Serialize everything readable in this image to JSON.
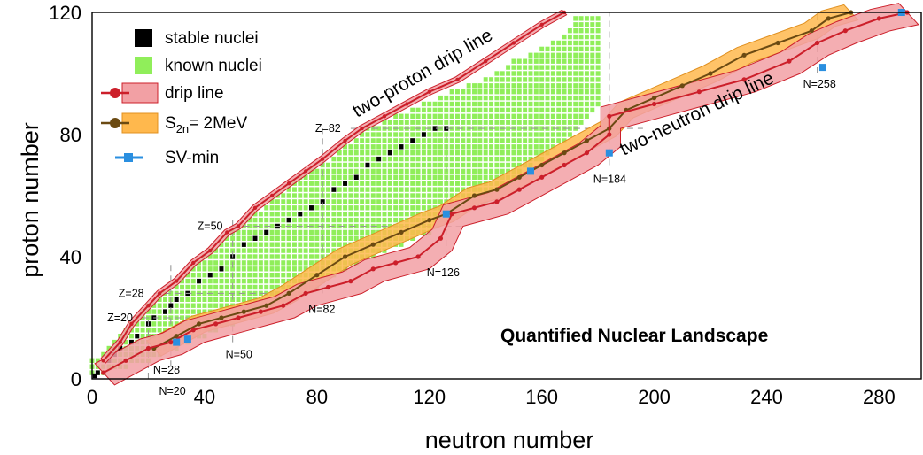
{
  "chart_data": {
    "type": "scatter",
    "title": "Quantified Nuclear Landscape",
    "xlabel": "neutron number",
    "ylabel": "proton number",
    "xlim": [
      0,
      295
    ],
    "ylim": [
      0,
      120
    ],
    "xticks": [
      "0",
      "40",
      "80",
      "120",
      "160",
      "200",
      "240",
      "280"
    ],
    "yticks": [
      "0",
      "40",
      "80",
      "120"
    ],
    "legend": {
      "placement": "top-left",
      "entries": [
        {
          "label": "stable nuclei",
          "color": "#000000"
        },
        {
          "label": "known nuclei",
          "color": "#90ee5a"
        },
        {
          "label": "drip line",
          "color": "#cc1f2a",
          "band": "#f2a0a4"
        },
        {
          "label_main": "S",
          "label_sub": "2n",
          "label_rest": "= 2MeV",
          "color": "#6b4a12",
          "band": "#ffb84d"
        },
        {
          "label": "SV-min",
          "color": "#2a8fe0"
        }
      ]
    },
    "annotations": {
      "two_proton": "two-proton drip line",
      "two_neutron": "two-neutron drip line"
    },
    "magic_numbers": {
      "neutron": [
        {
          "n": 20,
          "label": "N=20",
          "zmin": 0,
          "zmax": 20
        },
        {
          "n": 28,
          "label": "N=28",
          "zmin": 4,
          "zmax": 38
        },
        {
          "n": 50,
          "label": "N=50",
          "zmin": 12,
          "zmax": 52
        },
        {
          "n": 82,
          "label": "N=82",
          "zmin": 28,
          "zmax": 82
        },
        {
          "n": 126,
          "label": "N=126",
          "zmin": 40,
          "zmax": 82
        },
        {
          "n": 184,
          "label": "N=184",
          "zmin": 70,
          "zmax": 120
        },
        {
          "n": 258,
          "label": "N=258",
          "zmin": 100,
          "zmax": 120
        }
      ],
      "proton": [
        {
          "z": 20,
          "label": "Z=20",
          "nmin": 18,
          "nmax": 34
        },
        {
          "z": 28,
          "label": "Z=28",
          "nmin": 22,
          "nmax": 64
        },
        {
          "z": 50,
          "label": "Z=50",
          "nmin": 50,
          "nmax": 132
        },
        {
          "z": 82,
          "label": "Z=82",
          "nmin": 92,
          "nmax": 196
        }
      ]
    },
    "proton_drip_line": [
      [
        4,
        6
      ],
      [
        10,
        12
      ],
      [
        14,
        18
      ],
      [
        20,
        24
      ],
      [
        24,
        28
      ],
      [
        30,
        32
      ],
      [
        36,
        38
      ],
      [
        42,
        42
      ],
      [
        48,
        48
      ],
      [
        52,
        50
      ],
      [
        58,
        56
      ],
      [
        64,
        60
      ],
      [
        70,
        64
      ],
      [
        76,
        68
      ],
      [
        82,
        72
      ],
      [
        90,
        78
      ],
      [
        96,
        82
      ],
      [
        104,
        86
      ],
      [
        112,
        90
      ],
      [
        120,
        94
      ],
      [
        130,
        98
      ],
      [
        140,
        104
      ],
      [
        150,
        110
      ],
      [
        160,
        116
      ],
      [
        168,
        120
      ]
    ],
    "neutron_drip_line": [
      [
        4,
        2
      ],
      [
        12,
        6
      ],
      [
        20,
        10
      ],
      [
        28,
        12
      ],
      [
        36,
        16
      ],
      [
        44,
        18
      ],
      [
        52,
        20
      ],
      [
        60,
        22
      ],
      [
        68,
        24
      ],
      [
        76,
        28
      ],
      [
        84,
        30
      ],
      [
        92,
        32
      ],
      [
        100,
        36
      ],
      [
        108,
        38
      ],
      [
        116,
        40
      ],
      [
        124,
        46
      ],
      [
        128,
        54
      ],
      [
        136,
        56
      ],
      [
        144,
        58
      ],
      [
        152,
        62
      ],
      [
        160,
        66
      ],
      [
        168,
        70
      ],
      [
        176,
        74
      ],
      [
        184,
        80
      ],
      [
        184,
        86
      ],
      [
        200,
        90
      ],
      [
        216,
        94
      ],
      [
        232,
        98
      ],
      [
        248,
        104
      ],
      [
        258,
        110
      ],
      [
        268,
        114
      ],
      [
        280,
        118
      ],
      [
        290,
        120
      ]
    ],
    "s2n_line": [
      [
        22,
        10
      ],
      [
        30,
        14
      ],
      [
        38,
        18
      ],
      [
        46,
        20
      ],
      [
        54,
        22
      ],
      [
        62,
        24
      ],
      [
        70,
        28
      ],
      [
        80,
        34
      ],
      [
        90,
        40
      ],
      [
        100,
        44
      ],
      [
        110,
        48
      ],
      [
        120,
        52
      ],
      [
        126,
        54
      ],
      [
        136,
        60
      ],
      [
        144,
        62
      ],
      [
        152,
        66
      ],
      [
        160,
        70
      ],
      [
        168,
        74
      ],
      [
        176,
        78
      ],
      [
        184,
        82
      ],
      [
        190,
        88
      ],
      [
        200,
        92
      ],
      [
        210,
        96
      ],
      [
        220,
        100
      ],
      [
        232,
        106
      ],
      [
        244,
        110
      ],
      [
        256,
        114
      ],
      [
        262,
        118
      ],
      [
        270,
        120
      ]
    ],
    "sv_min_points": [
      [
        30,
        12
      ],
      [
        34,
        13
      ],
      [
        126,
        54
      ],
      [
        156,
        68
      ],
      [
        184,
        74
      ],
      [
        260,
        102
      ],
      [
        288,
        120
      ]
    ],
    "stable_nuclei": [
      [
        1,
        1
      ],
      [
        2,
        2
      ],
      [
        6,
        6
      ],
      [
        8,
        8
      ],
      [
        10,
        10
      ],
      [
        14,
        12
      ],
      [
        16,
        14
      ],
      [
        20,
        18
      ],
      [
        22,
        20
      ],
      [
        26,
        22
      ],
      [
        28,
        24
      ],
      [
        30,
        26
      ],
      [
        34,
        28
      ],
      [
        38,
        32
      ],
      [
        42,
        34
      ],
      [
        46,
        36
      ],
      [
        50,
        40
      ],
      [
        54,
        44
      ],
      [
        58,
        46
      ],
      [
        62,
        48
      ],
      [
        66,
        50
      ],
      [
        70,
        52
      ],
      [
        74,
        54
      ],
      [
        78,
        56
      ],
      [
        82,
        58
      ],
      [
        86,
        62
      ],
      [
        90,
        64
      ],
      [
        94,
        66
      ],
      [
        98,
        70
      ],
      [
        102,
        72
      ],
      [
        106,
        74
      ],
      [
        110,
        76
      ],
      [
        114,
        78
      ],
      [
        118,
        80
      ],
      [
        122,
        82
      ],
      [
        126,
        82
      ]
    ],
    "known_region": {
      "proton_side": [
        [
          2,
          6
        ],
        [
          8,
          12
        ],
        [
          14,
          18
        ],
        [
          20,
          24
        ],
        [
          26,
          28
        ],
        [
          34,
          34
        ],
        [
          42,
          42
        ],
        [
          50,
          48
        ],
        [
          58,
          54
        ],
        [
          66,
          60
        ],
        [
          74,
          66
        ],
        [
          82,
          70
        ],
        [
          90,
          76
        ],
        [
          98,
          82
        ],
        [
          108,
          86
        ],
        [
          118,
          90
        ],
        [
          128,
          94
        ],
        [
          140,
          98
        ],
        [
          150,
          104
        ],
        [
          160,
          108
        ],
        [
          168,
          112
        ],
        [
          172,
          118
        ]
      ],
      "neutron_side": [
        [
          4,
          2
        ],
        [
          12,
          4
        ],
        [
          20,
          6
        ],
        [
          30,
          10
        ],
        [
          40,
          14
        ],
        [
          50,
          18
        ],
        [
          60,
          22
        ],
        [
          70,
          26
        ],
        [
          80,
          30
        ],
        [
          90,
          36
        ],
        [
          100,
          40
        ],
        [
          110,
          44
        ],
        [
          120,
          48
        ],
        [
          130,
          54
        ],
        [
          140,
          58
        ],
        [
          150,
          66
        ],
        [
          160,
          72
        ],
        [
          168,
          78
        ],
        [
          176,
          86
        ],
        [
          180,
          90
        ]
      ]
    }
  }
}
